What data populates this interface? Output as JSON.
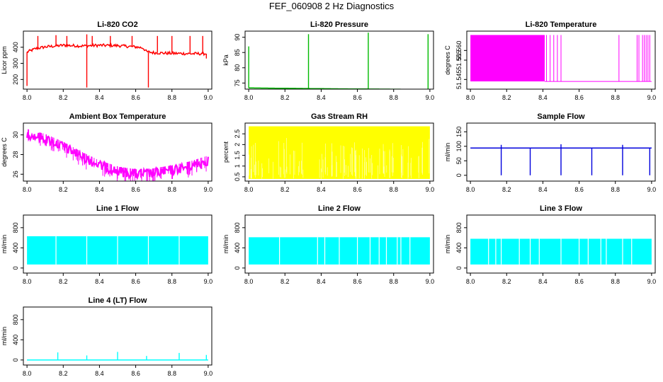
{
  "page_title": "FEF_060908  2 Hz Diagnostics",
  "chart_data": [
    {
      "id": "li820-co2",
      "type": "line",
      "title": "Li-820 CO2",
      "ylabel": "Licor ppm",
      "color": "#ff0000",
      "xlim": [
        7.98,
        9.02
      ],
      "ylim": [
        140,
        500
      ],
      "xticks": [
        "8.0",
        "8.2",
        "8.4",
        "8.6",
        "8.8",
        "9.0"
      ],
      "yticks": [
        200,
        300,
        400
      ],
      "series": [
        {
          "name": "co2",
          "x": [
            8.0,
            8.05,
            8.1,
            8.2,
            8.3,
            8.4,
            8.5,
            8.6,
            8.64,
            8.66,
            8.7,
            8.8,
            8.9,
            8.99
          ],
          "values": [
            370,
            392,
            402,
            412,
            408,
            412,
            410,
            402,
            396,
            372,
            366,
            362,
            360,
            360
          ]
        }
      ],
      "spikes_up": [
        [
          8.06,
          470
        ],
        [
          8.16,
          475
        ],
        [
          8.22,
          470
        ],
        [
          8.33,
          480
        ],
        [
          8.36,
          470
        ],
        [
          8.46,
          470
        ],
        [
          8.58,
          470
        ],
        [
          8.72,
          470
        ],
        [
          8.8,
          470
        ],
        [
          8.9,
          470
        ],
        [
          8.97,
          470
        ]
      ],
      "spikes_down": [
        [
          8.0,
          160
        ],
        [
          8.33,
          150
        ],
        [
          8.67,
          150
        ],
        [
          8.99,
          330
        ]
      ]
    },
    {
      "id": "li820-pressure",
      "type": "line",
      "title": "Li-820 Pressure",
      "ylabel": "kPa",
      "color": "#00bb00",
      "xlim": [
        7.98,
        9.02
      ],
      "ylim": [
        73,
        92
      ],
      "xticks": [
        "8.0",
        "8.2",
        "8.4",
        "8.6",
        "8.8",
        "9.0"
      ],
      "yticks": [
        75,
        80,
        85,
        90
      ],
      "series": [
        {
          "name": "pressure",
          "x": [
            8.0,
            8.5,
            9.0
          ],
          "values": [
            73.4,
            73.1,
            72.9
          ]
        }
      ],
      "spikes_up": [
        [
          8.0,
          87
        ],
        [
          8.33,
          91
        ],
        [
          8.66,
          91.5
        ],
        [
          8.99,
          91
        ]
      ],
      "spikes_down": []
    },
    {
      "id": "li820-temperature",
      "type": "line",
      "title": "Li-820 Temperature",
      "ylabel": "degrees C",
      "color": "#ff00ff",
      "xlim": [
        7.98,
        9.02
      ],
      "ylim": [
        51.54,
        51.57
      ],
      "xticks": [
        "8.0",
        "8.2",
        "8.4",
        "8.6",
        "8.8",
        "9.0"
      ],
      "yticks": [
        "51.545",
        "51.555",
        "51.560"
      ],
      "band": {
        "x_from": 8.0,
        "x_to": 8.41,
        "y_low": 51.544,
        "y_high": 51.568
      },
      "toggles": [
        8.42,
        8.44,
        8.46,
        8.48,
        8.5,
        8.82,
        8.92,
        8.93,
        8.95,
        8.96,
        8.97,
        8.98,
        8.99
      ],
      "baseline": 51.544
    },
    {
      "id": "ambient-box-temperature",
      "type": "line",
      "title": "Ambient Box Temperature",
      "ylabel": "degrees C",
      "color": "#ff00ff",
      "xlim": [
        7.98,
        9.02
      ],
      "ylim": [
        25.3,
        31.2
      ],
      "xticks": [
        "8.0",
        "8.2",
        "8.4",
        "8.6",
        "8.8",
        "9.0"
      ],
      "yticks": [
        26,
        28,
        30
      ],
      "series": [
        {
          "name": "temperature",
          "x": [
            8.0,
            8.1,
            8.2,
            8.3,
            8.4,
            8.5,
            8.6,
            8.7,
            8.8,
            8.9,
            9.0
          ],
          "values": [
            30.6,
            30.1,
            29.3,
            28.3,
            27.4,
            26.8,
            26.5,
            26.6,
            26.9,
            27.3,
            27.9
          ]
        }
      ],
      "noise": 1.0
    },
    {
      "id": "gas-stream-rh",
      "type": "line",
      "title": "Gas Stream RH",
      "ylabel": "percent",
      "color": "#ffff00",
      "xlim": [
        7.98,
        9.02
      ],
      "ylim": [
        0.3,
        3.0
      ],
      "xticks": [
        "8.0",
        "8.2",
        "8.4",
        "8.6",
        "8.8",
        "9.0"
      ],
      "yticks": [
        0.5,
        1.0,
        1.5,
        2.0,
        2.5
      ],
      "band": {
        "x_from": 8.0,
        "x_to": 9.0,
        "y_low": 0.4,
        "y_high": 2.85
      }
    },
    {
      "id": "sample-flow",
      "type": "line",
      "title": "Sample Flow",
      "ylabel": "ml/min",
      "color": "#0000dd",
      "xlim": [
        7.98,
        9.02
      ],
      "ylim": [
        -20,
        180
      ],
      "xticks": [
        "8.0",
        "8.2",
        "8.4",
        "8.6",
        "8.8",
        "9.0"
      ],
      "yticks": [
        0,
        50,
        100,
        150
      ],
      "series": [
        {
          "name": "flow",
          "x": [
            8.0,
            9.0
          ],
          "values": [
            94,
            94
          ]
        }
      ],
      "spikes_up": [
        [
          8.17,
          105
        ],
        [
          8.5,
          107
        ],
        [
          8.84,
          105
        ]
      ],
      "spikes_down": [
        [
          8.17,
          0
        ],
        [
          8.33,
          0
        ],
        [
          8.5,
          0
        ],
        [
          8.67,
          0
        ],
        [
          8.84,
          0
        ],
        [
          8.99,
          0
        ]
      ]
    },
    {
      "id": "line-1-flow",
      "type": "line",
      "title": "Line 1 Flow",
      "ylabel": "ml/min",
      "color": "#00ffff",
      "xlim": [
        7.98,
        9.02
      ],
      "ylim": [
        -100,
        1050
      ],
      "xticks": [
        "8.0",
        "8.2",
        "8.4",
        "8.6",
        "8.8",
        "9.0"
      ],
      "yticks": [
        0,
        400,
        800
      ],
      "band": {
        "x_from": 8.0,
        "x_to": 9.0,
        "y_low": 70,
        "y_high": 630
      },
      "gaps": [
        8.16,
        8.33,
        8.5,
        8.67,
        8.84
      ]
    },
    {
      "id": "line-2-flow",
      "type": "line",
      "title": "Line 2 Flow",
      "ylabel": "ml/min",
      "color": "#00ffff",
      "xlim": [
        7.98,
        9.02
      ],
      "ylim": [
        -100,
        1050
      ],
      "xticks": [
        "8.0",
        "8.2",
        "8.4",
        "8.6",
        "8.8",
        "9.0"
      ],
      "yticks": [
        0,
        400,
        800
      ],
      "band": {
        "x_from": 8.0,
        "x_to": 9.0,
        "y_low": 70,
        "y_high": 610
      },
      "gaps": [
        8.17,
        8.38,
        8.42,
        8.5,
        8.6,
        8.67,
        8.72,
        8.76,
        8.82,
        8.84,
        8.89
      ]
    },
    {
      "id": "line-3-flow",
      "type": "line",
      "title": "Line 3 Flow",
      "ylabel": "ml/min",
      "color": "#00ffff",
      "xlim": [
        7.98,
        9.02
      ],
      "ylim": [
        -100,
        1050
      ],
      "xticks": [
        "8.0",
        "8.2",
        "8.4",
        "8.6",
        "8.8",
        "9.0"
      ],
      "yticks": [
        0,
        400,
        800
      ],
      "band": {
        "x_from": 8.0,
        "x_to": 9.0,
        "y_low": 70,
        "y_high": 580
      },
      "gaps": [
        8.1,
        8.14,
        8.17,
        8.27,
        8.33,
        8.38,
        8.5,
        8.6,
        8.65,
        8.72,
        8.75,
        8.84,
        8.89
      ]
    },
    {
      "id": "line-4-lt-flow",
      "type": "line",
      "title": "Line 4 (LT) Flow",
      "ylabel": "ml/min",
      "color": "#00ffff",
      "xlim": [
        7.98,
        9.02
      ],
      "ylim": [
        -100,
        1050
      ],
      "xticks": [
        "8.0",
        "8.2",
        "8.4",
        "8.6",
        "8.8",
        "9.0"
      ],
      "yticks": [
        0,
        400,
        800
      ],
      "series": [
        {
          "name": "flow",
          "x": [
            8.0,
            9.0
          ],
          "values": [
            0,
            0
          ]
        }
      ],
      "spikes_up": [
        [
          8.17,
          150
        ],
        [
          8.33,
          90
        ],
        [
          8.5,
          160
        ],
        [
          8.66,
          80
        ],
        [
          8.84,
          140
        ],
        [
          8.99,
          100
        ]
      ],
      "spikes_down": []
    }
  ]
}
